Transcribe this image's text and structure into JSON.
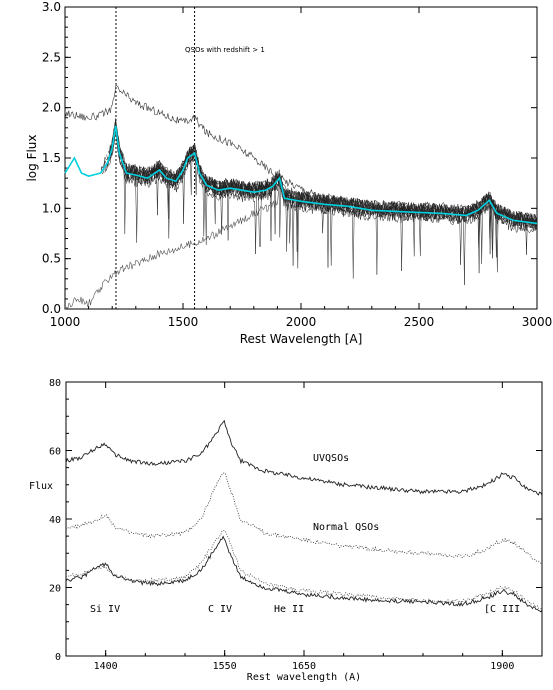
{
  "chart_data": [
    {
      "type": "line",
      "xlabel": "Rest Wavelength [A]",
      "ylabel": "log Flux",
      "xlim": [
        1000,
        3000
      ],
      "ylim": [
        0.0,
        3.0
      ],
      "xticks": [
        "1000",
        "1500",
        "2000",
        "2500",
        "3000"
      ],
      "yticks": [
        "0.0",
        "0.5",
        "1.0",
        "1.5",
        "2.0",
        "2.5",
        "3.0"
      ],
      "annotation": "QSOs with redshift > 1",
      "vlines": [
        1216,
        1549
      ],
      "grid": false,
      "series": [
        {
          "color": "#00d0e0",
          "x": [
            1000,
            1040,
            1070,
            1100,
            1150,
            1180,
            1200,
            1215,
            1230,
            1260,
            1300,
            1350,
            1400,
            1430,
            1470,
            1500,
            1520,
            1549,
            1570,
            1600,
            1650,
            1700,
            1750,
            1800,
            1850,
            1880,
            1909,
            1930,
            2000,
            2100,
            2200,
            2300,
            2400,
            2500,
            2600,
            2700,
            2750,
            2798,
            2830,
            2900,
            3000
          ],
          "y": [
            1.35,
            1.5,
            1.35,
            1.32,
            1.35,
            1.45,
            1.6,
            1.82,
            1.55,
            1.35,
            1.33,
            1.3,
            1.38,
            1.3,
            1.27,
            1.38,
            1.5,
            1.55,
            1.35,
            1.23,
            1.18,
            1.2,
            1.18,
            1.16,
            1.18,
            1.22,
            1.3,
            1.1,
            1.07,
            1.04,
            1.02,
            0.98,
            0.97,
            0.96,
            0.95,
            0.93,
            0.98,
            1.08,
            0.95,
            0.88,
            0.85
          ]
        },
        {
          "color": "#333333",
          "x": [
            1000,
            1100,
            1150,
            1200,
            1215,
            1300,
            1400,
            1500,
            1549,
            1600,
            1700,
            1800,
            1909,
            2000,
            2100,
            2200,
            2300
          ],
          "y": [
            1.95,
            1.9,
            1.92,
            2.0,
            2.2,
            2.05,
            1.95,
            1.85,
            1.9,
            1.75,
            1.65,
            1.5,
            1.3,
            1.2,
            1.1,
            1.05,
            1.02
          ]
        },
        {
          "color": "#555555",
          "x": [
            1000,
            1050,
            1100,
            1150,
            1200,
            1300,
            1400,
            1500,
            1600,
            1700,
            1800,
            1900,
            1909,
            2000
          ],
          "y": [
            0.0,
            0.1,
            0.05,
            0.2,
            0.35,
            0.45,
            0.55,
            0.62,
            0.7,
            0.82,
            0.95,
            1.05,
            1.25,
            1.1
          ]
        }
      ]
    },
    {
      "type": "line",
      "xlabel": "Rest wavelength (A)",
      "ylabel": "Flux",
      "xlim": [
        1350,
        1950
      ],
      "ylim": [
        0,
        80
      ],
      "xticks": [
        "1400",
        "1550",
        "1650",
        "1900"
      ],
      "yticks": [
        "0",
        "20",
        "40",
        "60",
        "80"
      ],
      "grid": false,
      "series": [
        {
          "name": "UVQSOs",
          "x": [
            1350,
            1370,
            1390,
            1400,
            1410,
            1430,
            1460,
            1500,
            1520,
            1540,
            1549,
            1555,
            1570,
            1600,
            1650,
            1700,
            1750,
            1800,
            1850,
            1880,
            1900,
            1915,
            1930,
            1950
          ],
          "y": [
            57,
            58,
            61,
            62,
            59,
            57,
            56,
            57,
            59,
            65,
            69,
            64,
            57,
            54,
            52,
            50,
            49,
            48,
            48,
            50,
            53,
            52,
            49,
            47
          ]
        },
        {
          "name": "Normal QSOs",
          "x": [
            1350,
            1370,
            1390,
            1400,
            1410,
            1430,
            1460,
            1500,
            1520,
            1540,
            1549,
            1555,
            1570,
            1600,
            1650,
            1700,
            1750,
            1800,
            1850,
            1880,
            1900,
            1915,
            1930,
            1950
          ],
          "y": [
            37,
            38,
            40,
            41,
            38,
            36,
            35,
            36,
            40,
            50,
            54,
            50,
            40,
            36,
            34,
            32,
            31,
            30,
            29,
            31,
            34,
            33,
            30,
            27
          ]
        },
        {
          "x": [
            1350,
            1370,
            1390,
            1400,
            1410,
            1430,
            1460,
            1500,
            1520,
            1540,
            1549,
            1555,
            1570,
            1600,
            1650,
            1700,
            1750,
            1800,
            1850,
            1880,
            1900,
            1915,
            1930,
            1950
          ],
          "y": [
            22,
            23,
            26,
            27,
            24,
            22,
            21,
            22,
            25,
            32,
            35,
            31,
            23,
            20,
            18,
            17,
            16,
            16,
            15,
            17,
            19,
            18,
            15,
            13
          ]
        },
        {
          "x": [
            1350,
            1370,
            1390,
            1400,
            1410,
            1430,
            1460,
            1500,
            1520,
            1540,
            1549,
            1555,
            1570,
            1600,
            1650,
            1700,
            1750,
            1800,
            1850,
            1880,
            1900,
            1915,
            1930,
            1950
          ],
          "y": [
            23,
            24,
            26,
            26,
            24,
            22,
            22,
            23,
            27,
            34,
            37,
            34,
            25,
            21,
            19,
            18,
            17,
            16,
            16,
            18,
            20,
            19,
            16,
            14
          ]
        }
      ],
      "line_labels": [
        "Si IV",
        "C IV",
        "He II",
        "[C III"
      ]
    }
  ]
}
